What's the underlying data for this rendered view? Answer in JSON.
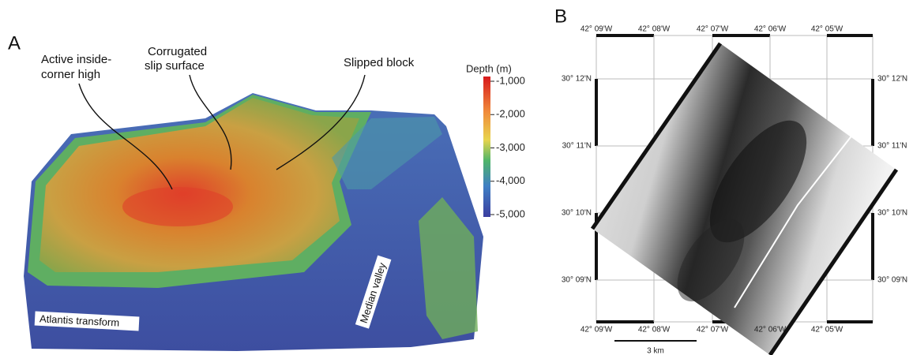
{
  "panel_a": {
    "letter": "A",
    "annotations": [
      [
        "Active inside-",
        "corner high"
      ],
      [
        "Corrugated",
        "slip surface"
      ],
      [
        "Slipped block"
      ]
    ],
    "region_labels": [
      "Atlantis transform",
      "Median valley"
    ],
    "colorbar": {
      "title": "Depth (m)",
      "labels": [
        "-1,000",
        "-2,000",
        "-3,000",
        "-4,000",
        "-5,000"
      ]
    }
  },
  "panel_b": {
    "letter": "B",
    "longitude_labels": [
      "42° 09'W",
      "42° 08'W",
      "42° 07'W",
      "42° 06'W",
      "42° 05'W"
    ],
    "latitude_labels": [
      "30° 12'N",
      "30° 11'N",
      "30° 10'N",
      "30° 09'N"
    ],
    "scale_bar": "3 km"
  }
}
